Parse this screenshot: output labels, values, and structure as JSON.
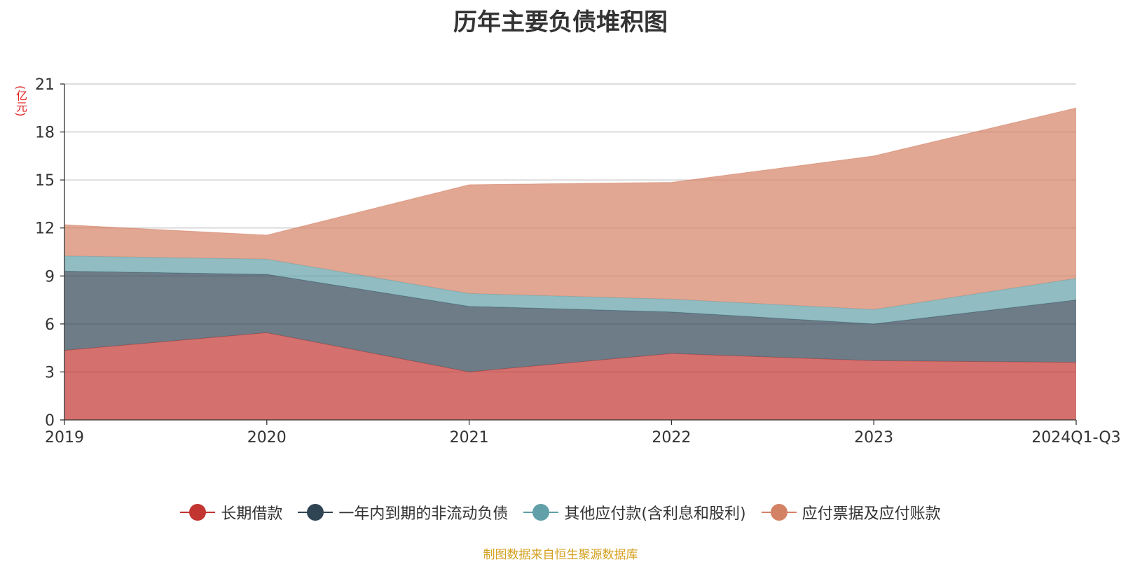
{
  "title": "历年主要负债堆积图",
  "unit_label": "(亿元)",
  "source": "制图数据来自恒生聚源数据库",
  "chart_data": {
    "type": "area",
    "stacked": true,
    "categories": [
      "2019",
      "2020",
      "2021",
      "2022",
      "2023",
      "2024Q1-Q3"
    ],
    "y_ticks": [
      "0",
      "3",
      "6",
      "9",
      "12",
      "15",
      "18",
      "21"
    ],
    "ylim": [
      0,
      21
    ],
    "grid": true,
    "legend_position": "bottom",
    "series": [
      {
        "name": "长期借款",
        "color": "#c23531",
        "values": [
          4.35,
          5.45,
          3.0,
          4.15,
          3.7,
          3.6
        ]
      },
      {
        "name": "一年内到期的非流动负债",
        "color": "#2f4554",
        "values": [
          4.95,
          3.65,
          4.1,
          2.6,
          2.3,
          3.9
        ]
      },
      {
        "name": "其他应付款(含利息和股利)",
        "color": "#61a0a8",
        "values": [
          0.95,
          0.95,
          0.8,
          0.8,
          0.9,
          1.35
        ]
      },
      {
        "name": "应付票据及应付账款",
        "color": "#d48265",
        "values": [
          1.95,
          1.5,
          6.8,
          7.3,
          9.6,
          10.65
        ]
      }
    ]
  }
}
